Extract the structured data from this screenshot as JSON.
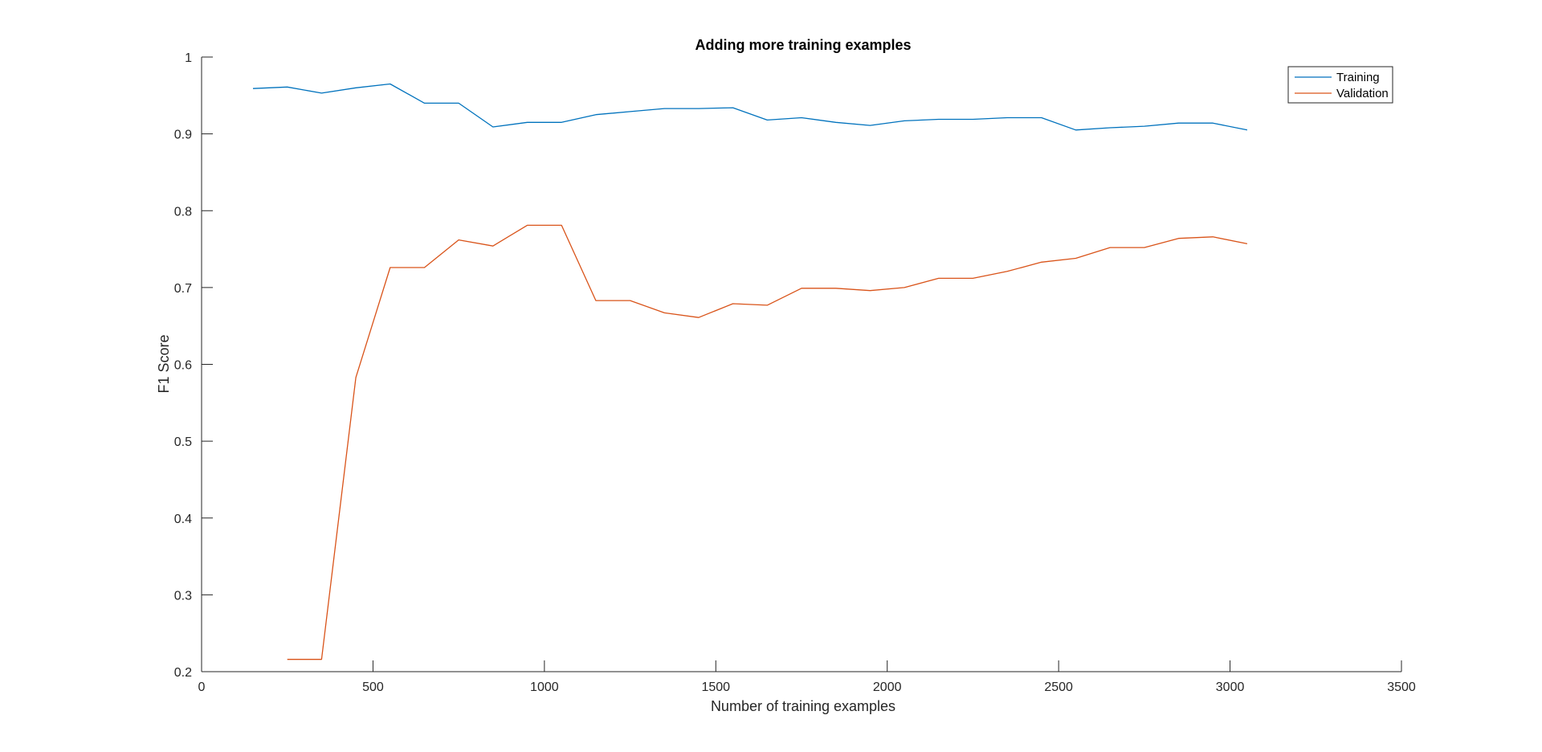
{
  "chart_data": {
    "type": "line",
    "title": "Adding more training examples",
    "xlabel": "Number of training examples",
    "ylabel": "F1 Score",
    "xlim": [
      0,
      3500
    ],
    "ylim": [
      0.2,
      1
    ],
    "xticks": [
      0,
      500,
      1000,
      1500,
      2000,
      2500,
      3000,
      3500
    ],
    "yticks": [
      0.2,
      0.3,
      0.4,
      0.5,
      0.6,
      0.7,
      0.8,
      0.9,
      1
    ],
    "ytick_labels": [
      "0.2",
      "0.3",
      "0.4",
      "0.5",
      "0.6",
      "0.7",
      "0.8",
      "0.9",
      "1"
    ],
    "grid": false,
    "legend_position": "top-right",
    "series": [
      {
        "name": "Training",
        "color": "#0072BD",
        "x": [
          150,
          250,
          350,
          450,
          550,
          650,
          750,
          850,
          950,
          1050,
          1150,
          1250,
          1350,
          1450,
          1550,
          1650,
          1750,
          1850,
          1950,
          2050,
          2150,
          2250,
          2350,
          2450,
          2550,
          2650,
          2750,
          2850,
          2950,
          3050
        ],
        "y": [
          0.959,
          0.961,
          0.953,
          0.96,
          0.965,
          0.94,
          0.94,
          0.909,
          0.915,
          0.915,
          0.925,
          0.929,
          0.933,
          0.933,
          0.934,
          0.918,
          0.921,
          0.915,
          0.911,
          0.917,
          0.919,
          0.919,
          0.921,
          0.921,
          0.905,
          0.908,
          0.91,
          0.914,
          0.914,
          0.905
        ]
      },
      {
        "name": "Validation",
        "color": "#D95319",
        "x": [
          250,
          350,
          450,
          550,
          650,
          750,
          850,
          950,
          1050,
          1150,
          1250,
          1350,
          1450,
          1550,
          1650,
          1750,
          1850,
          1950,
          2050,
          2150,
          2250,
          2350,
          2450,
          2550,
          2650,
          2750,
          2850,
          2950,
          3050
        ],
        "y": [
          0.216,
          0.216,
          0.583,
          0.726,
          0.726,
          0.762,
          0.754,
          0.781,
          0.781,
          0.683,
          0.683,
          0.667,
          0.661,
          0.679,
          0.677,
          0.699,
          0.699,
          0.696,
          0.7,
          0.712,
          0.712,
          0.721,
          0.733,
          0.738,
          0.752,
          0.752,
          0.764,
          0.766,
          0.757
        ]
      }
    ]
  }
}
